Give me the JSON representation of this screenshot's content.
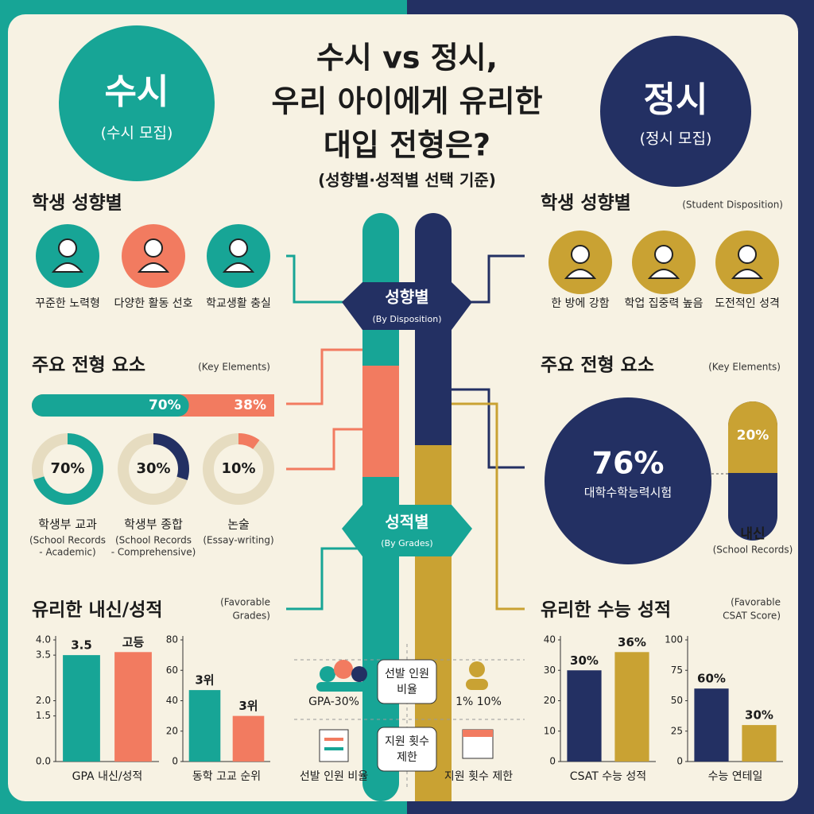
{
  "title": [
    "수시 vs 정시,",
    "우리 아이에게 유리한",
    "대입 전형은?"
  ],
  "subtitle": "(성향별·성적별 선택 기준)",
  "left_badge": {
    "title": "수시",
    "sub": "(수시 모집)"
  },
  "right_badge": {
    "title": "정시",
    "sub": "(정시 모집)"
  },
  "center": {
    "top": {
      "label": "성향별",
      "sub": "(By Disposition)"
    },
    "bottom": {
      "label": "성적별",
      "sub": "(By Grades)"
    }
  },
  "left": {
    "disposition": {
      "heading": "학생 성향별",
      "items": [
        "꾸준한 노력형",
        "다양한 활동 선호",
        "학교생활 충실"
      ]
    },
    "elements": {
      "heading": "주요 전형 요소",
      "heading_en": "(Key Elements)",
      "bar": {
        "values": [
          70,
          38
        ],
        "value_labels": [
          "70%",
          "38%"
        ],
        "colors": [
          "#17a596",
          "#f27b60"
        ]
      },
      "donuts": [
        {
          "value": 70,
          "label": "70%",
          "name": "학생부 교과",
          "en": [
            "(School Records",
            "- Academic)"
          ],
          "color": "#17a596"
        },
        {
          "value": 30,
          "label": "30%",
          "name": "학생부 종합",
          "en": [
            "(School Records",
            "- Comprehensive)"
          ],
          "color": "#233063"
        },
        {
          "value": 10,
          "label": "10%",
          "name": "논술",
          "en": [
            "(Essay-writing)"
          ],
          "color": "#f27b60"
        }
      ]
    },
    "grades": {
      "heading": "유리한 내신/성적",
      "heading_en": [
        "(Favorable",
        "Grades)"
      ],
      "charts": [
        {
          "type": "bar",
          "ylim": [
            0,
            4
          ],
          "yticks": [
            {
              "value": 4,
              "label": "4.0"
            },
            3.5,
            {
              "value": 2,
              "label": "2.0"
            },
            1.5,
            {
              "value": 0,
              "label": "0.0"
            }
          ],
          "values": [
            3.5,
            3.6
          ],
          "bar_labels": [
            "3.5",
            "고등"
          ],
          "colors": [
            "#17a596",
            "#f27b60"
          ],
          "xlabel": "GPA 내신/성적"
        },
        {
          "type": "bar",
          "ylim": [
            0,
            80
          ],
          "yticks": [
            0,
            20,
            40,
            60,
            80
          ],
          "values": [
            47,
            30
          ],
          "bar_labels": [
            "3위",
            "3위"
          ],
          "colors": [
            "#17a596",
            "#f27b60"
          ],
          "xlabel": "동학 고교 순위"
        }
      ]
    }
  },
  "right": {
    "disposition": {
      "heading": "학생 성향별",
      "heading_en": "(Student Disposition)",
      "items": [
        "한 방에 강함",
        "학업 집중력 높음",
        "도전적인 성격"
      ]
    },
    "elements": {
      "heading": "주요 전형 요소",
      "heading_en": "(Key Elements)",
      "main": {
        "label": "76%",
        "name": "대학수학능력시험"
      },
      "side": {
        "label": "20%",
        "name": "내신",
        "en": "(School Records)"
      }
    },
    "grades": {
      "heading": "유리한 수능 성적",
      "heading_en": [
        "(Favorable",
        "CSAT Score)"
      ],
      "charts": [
        {
          "type": "bar",
          "ylim": [
            0,
            40
          ],
          "yticks": [
            0,
            10,
            20,
            30,
            40
          ],
          "values": [
            30,
            36
          ],
          "value_labels": [
            "30%",
            "36%"
          ],
          "colors": [
            "#233063",
            "#c9a233"
          ],
          "xlabel": "CSAT 수능 성적"
        },
        {
          "type": "bar",
          "ylim": [
            0,
            100
          ],
          "yticks": [
            0,
            25,
            50,
            75,
            100
          ],
          "values": [
            60,
            30
          ],
          "value_labels": [
            "60%",
            "30%"
          ],
          "colors": [
            "#233063",
            "#c9a233"
          ],
          "xlabel": "수능 연테일"
        }
      ]
    }
  },
  "bottom": {
    "items": [
      "GPA-30%",
      "1% 10%",
      "선발 인원 비율",
      "지원 횟수 제한"
    ],
    "boxes": [
      [
        "선발 인원",
        "비율"
      ],
      [
        "지원 횟수",
        "제한"
      ]
    ]
  }
}
